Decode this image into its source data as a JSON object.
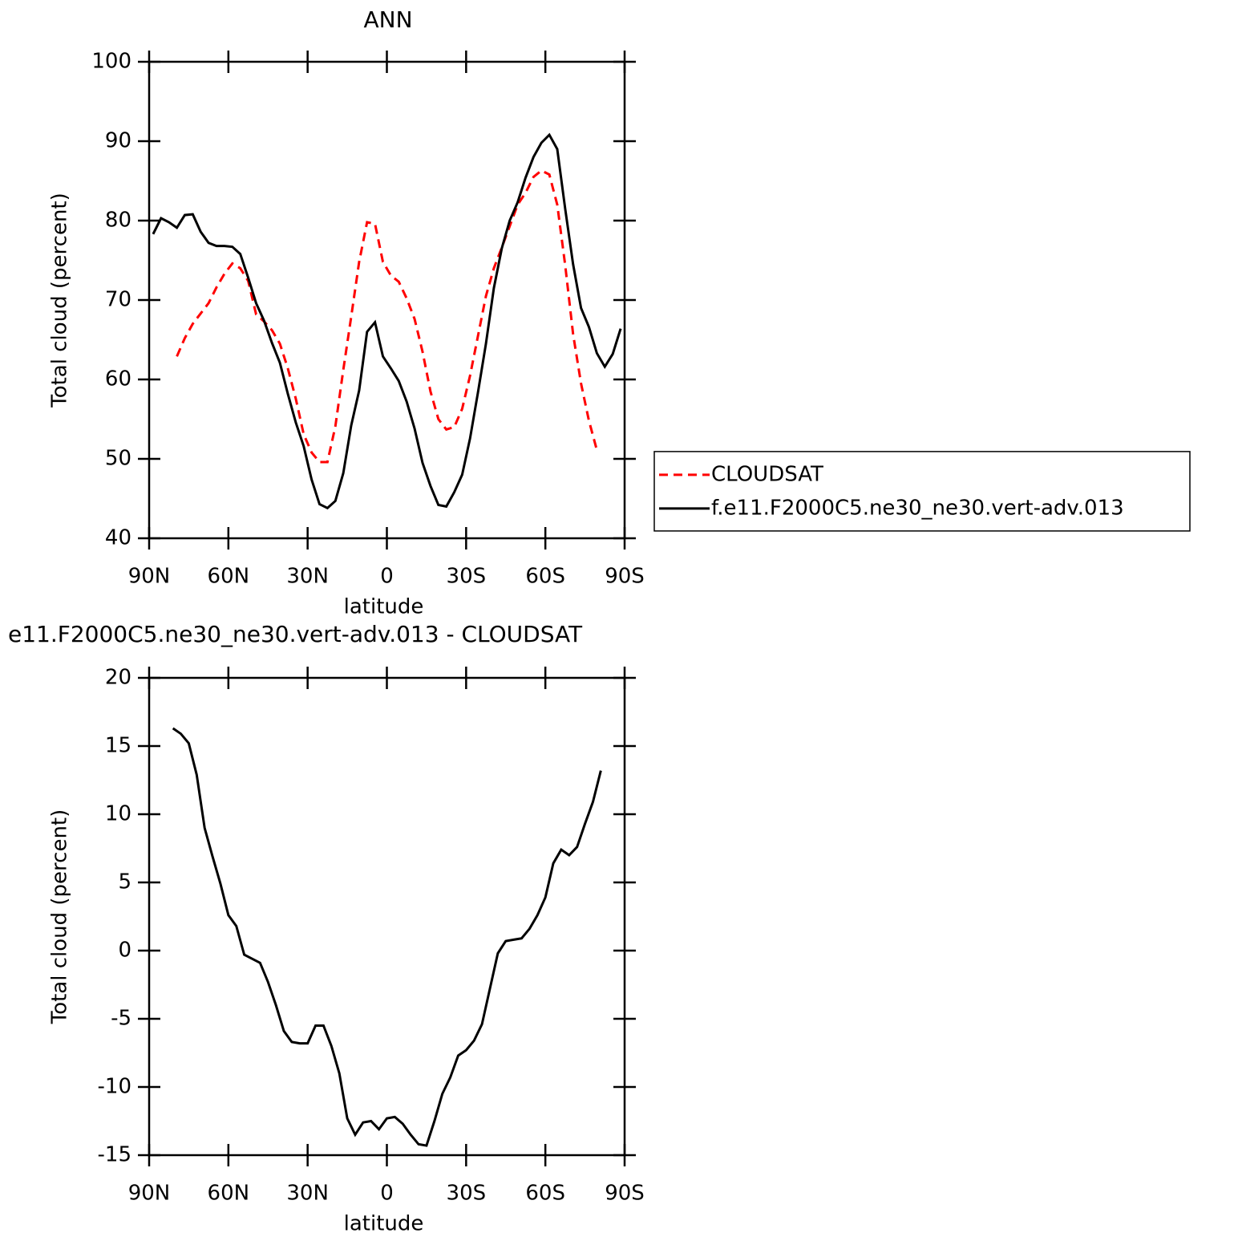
{
  "chart_data": [
    {
      "type": "line",
      "title": "ANN",
      "x_label": "latitude",
      "y_label": "Total cloud (percent)",
      "x": [
        88.5,
        85.5,
        82.5,
        79.5,
        76.5,
        73.5,
        70.5,
        67.5,
        64.5,
        61.5,
        58.5,
        55.5,
        52.5,
        49.5,
        46.5,
        43.5,
        40.5,
        37.5,
        34.5,
        31.5,
        28.5,
        25.5,
        22.5,
        19.5,
        16.5,
        13.5,
        10.5,
        7.5,
        4.5,
        1.5,
        -1.5,
        -4.5,
        -7.5,
        -10.5,
        -13.5,
        -16.5,
        -19.5,
        -22.5,
        -25.5,
        -28.5,
        -31.5,
        -34.5,
        -37.5,
        -40.5,
        -43.5,
        -46.5,
        -49.5,
        -52.5,
        -55.5,
        -58.5,
        -61.5,
        -64.5,
        -67.5,
        -70.5,
        -73.5,
        -76.5,
        -79.5,
        -82.5,
        -85.5,
        -88.5
      ],
      "series": [
        {
          "name": "CLOUDSAT",
          "color": "#ff0000",
          "style": "dashed",
          "values": [
            null,
            null,
            null,
            62.9,
            65.2,
            67.0,
            68.3,
            69.6,
            71.6,
            73.3,
            74.6,
            74.0,
            72.4,
            68.2,
            67.3,
            66.2,
            64.5,
            61.4,
            57.6,
            53.1,
            50.8,
            49.6,
            49.6,
            54.1,
            61.2,
            67.9,
            74.8,
            79.8,
            79.6,
            74.8,
            73.1,
            72.3,
            70.2,
            67.6,
            63.5,
            58.5,
            55.0,
            53.7,
            54.0,
            56.3,
            60.5,
            65.5,
            70.5,
            74.0,
            76.6,
            79.3,
            82.0,
            83.5,
            85.5,
            86.3,
            85.8,
            82.0,
            74.4,
            65.7,
            59.5,
            54.8,
            51.1,
            null,
            null,
            null
          ]
        },
        {
          "name": "f.e11.F2000C5.ne30_ne30.vert-adv.013",
          "color": "#000000",
          "style": "solid",
          "values": [
            78.3,
            80.3,
            79.8,
            79.1,
            80.7,
            80.8,
            78.6,
            77.2,
            76.8,
            76.8,
            76.7,
            75.8,
            72.8,
            69.6,
            67.4,
            64.6,
            62.1,
            58.2,
            54.6,
            51.6,
            47.4,
            44.3,
            43.8,
            44.7,
            48.2,
            54.2,
            58.6,
            66.0,
            67.2,
            62.9,
            61.4,
            59.8,
            57.2,
            53.8,
            49.5,
            46.6,
            44.2,
            44.0,
            45.8,
            48.0,
            52.6,
            58.4,
            64.5,
            71.5,
            76.5,
            80.0,
            82.3,
            85.4,
            88.0,
            89.8,
            90.8,
            89.0,
            81.5,
            74.5,
            69.0,
            66.6,
            63.3,
            61.6,
            63.2,
            66.4
          ]
        }
      ],
      "xlim": [
        90,
        -90
      ],
      "xticks": [
        {
          "value": 90,
          "label": "90N"
        },
        {
          "value": 60,
          "label": "60N"
        },
        {
          "value": 30,
          "label": "30N"
        },
        0,
        {
          "value": -30,
          "label": "30S"
        },
        {
          "value": -60,
          "label": "60S"
        },
        {
          "value": -90,
          "label": "90S"
        }
      ],
      "ylim": [
        40,
        100
      ],
      "yticks": [
        40,
        50,
        60,
        70,
        80,
        90,
        100
      ],
      "legend": "right"
    },
    {
      "type": "line",
      "title": "e11.F2000C5.ne30_ne30.vert-adv.013 - CLOUDSAT",
      "x_label": "latitude",
      "y_label": "Total cloud (percent)",
      "x": [
        81,
        78,
        75,
        72,
        69,
        66,
        63,
        60,
        57,
        54,
        51,
        48,
        45,
        42,
        39,
        36,
        33,
        30,
        27,
        24,
        21,
        18,
        15,
        12,
        9,
        6,
        3,
        0,
        -3,
        -6,
        -9,
        -12,
        -15,
        -18,
        -21,
        -24,
        -27,
        -30,
        -33,
        -36,
        -39,
        -42,
        -45,
        -48,
        -51,
        -54,
        -57,
        -60,
        -63,
        -66,
        -69,
        -72,
        -75,
        -78,
        -81
      ],
      "series": [
        {
          "color": "#000000",
          "style": "solid",
          "values": [
            16.3,
            15.9,
            15.2,
            12.9,
            9.0,
            6.9,
            4.9,
            2.6,
            1.8,
            -0.3,
            -0.6,
            -0.9,
            -2.3,
            -4.0,
            -5.9,
            -6.7,
            -6.8,
            -6.8,
            -5.5,
            -5.5,
            -7.0,
            -9.0,
            -12.3,
            -13.5,
            -12.6,
            -12.5,
            -13.1,
            -12.3,
            -12.2,
            -12.7,
            -13.5,
            -14.2,
            -14.3,
            -12.5,
            -10.5,
            -9.3,
            -7.7,
            -7.3,
            -6.6,
            -5.4,
            -2.8,
            -0.2,
            0.7,
            0.8,
            0.9,
            1.6,
            2.6,
            3.9,
            6.4,
            7.4,
            7.0,
            7.6,
            9.3,
            10.9,
            13.2
          ]
        }
      ],
      "xlim": [
        90,
        -90
      ],
      "xticks": [
        {
          "value": 90,
          "label": "90N"
        },
        {
          "value": 60,
          "label": "60N"
        },
        {
          "value": 30,
          "label": "30N"
        },
        0,
        {
          "value": -30,
          "label": "30S"
        },
        {
          "value": -60,
          "label": "60S"
        },
        {
          "value": -90,
          "label": "90S"
        }
      ],
      "ylim": [
        -15,
        20
      ],
      "yticks": [
        -15,
        -10,
        -5,
        0,
        5,
        10,
        15,
        20
      ]
    }
  ]
}
